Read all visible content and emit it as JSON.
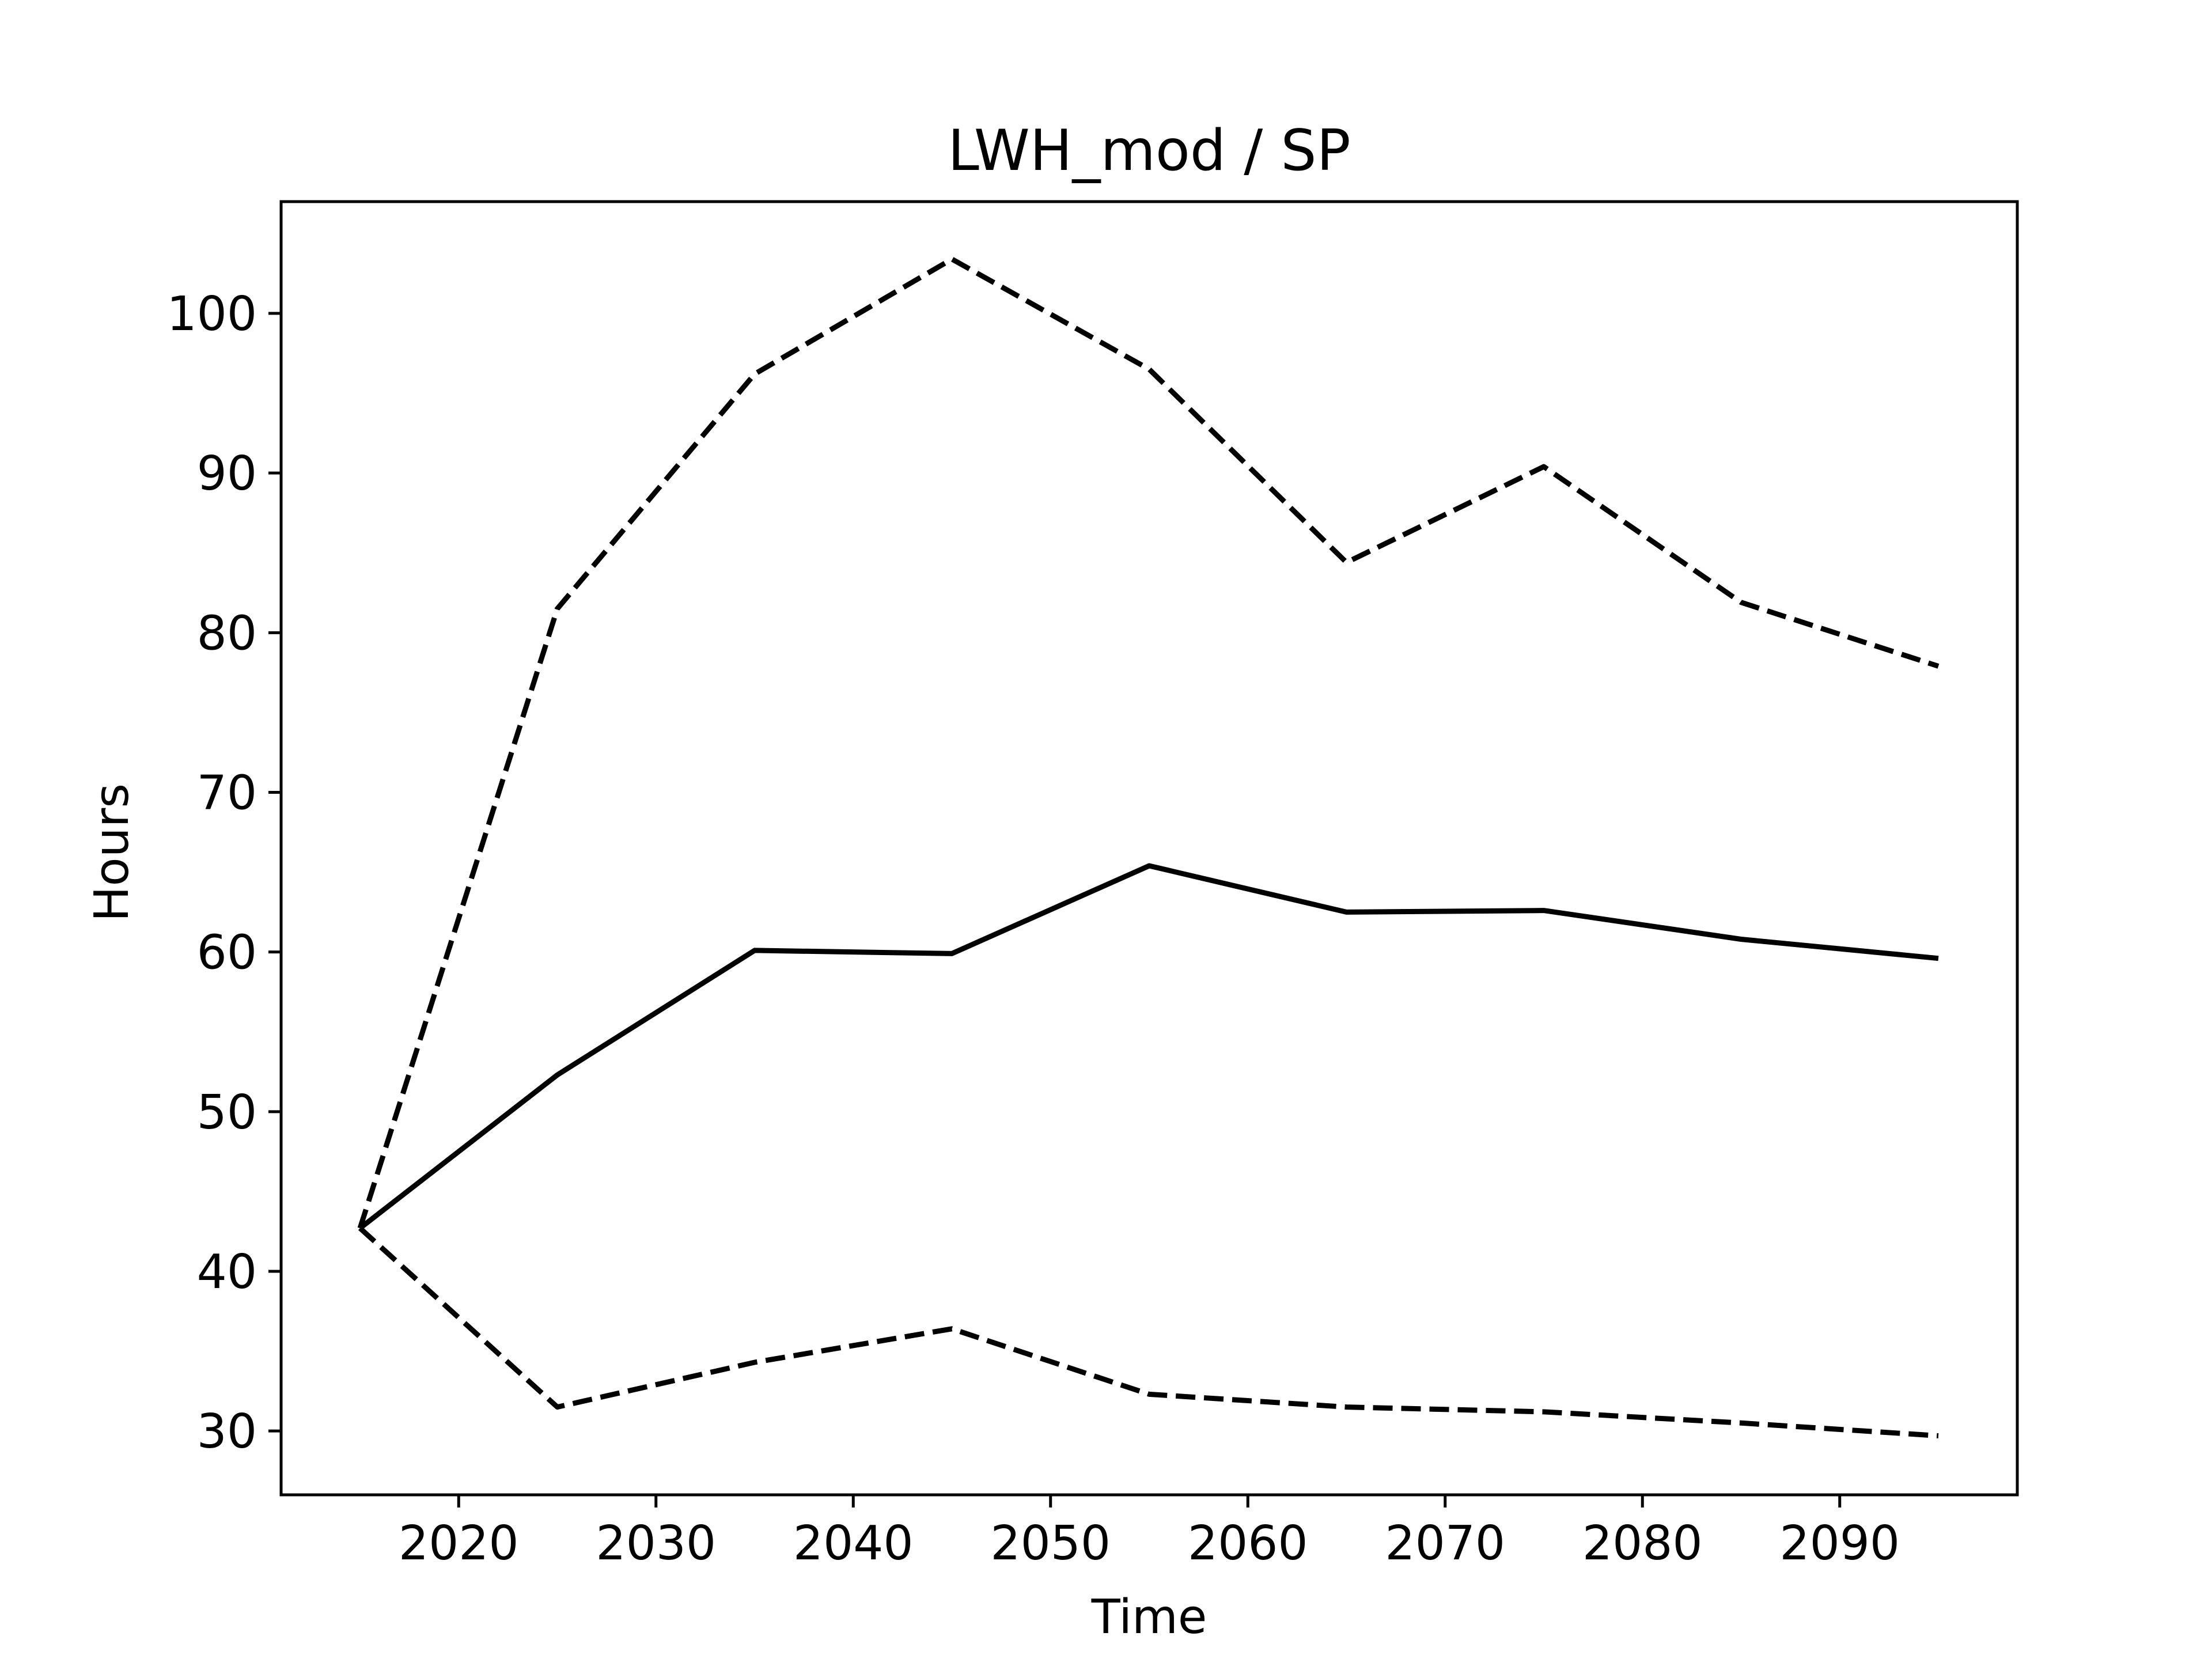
{
  "chart_data": {
    "type": "line",
    "title": "LWH_mod / SP",
    "xlabel": "Time",
    "ylabel": "Hours",
    "xlim": [
      2011,
      2099
    ],
    "ylim": [
      26,
      107
    ],
    "xticks": [
      2020,
      2030,
      2040,
      2050,
      2060,
      2070,
      2080,
      2090
    ],
    "yticks": [
      30,
      40,
      50,
      60,
      70,
      80,
      90,
      100
    ],
    "grid": false,
    "legend": "none",
    "x": [
      2015,
      2025,
      2035,
      2045,
      2055,
      2065,
      2075,
      2085,
      2095
    ],
    "series": [
      {
        "style": "solid",
        "color": "#000000",
        "values": [
          42.7,
          52.3,
          60.1,
          59.9,
          65.4,
          62.5,
          62.6,
          60.8,
          59.6
        ]
      },
      {
        "style": "dashed",
        "color": "#000000",
        "values": [
          42.7,
          81.5,
          96.2,
          103.4,
          96.5,
          84.4,
          90.4,
          81.9,
          77.9
        ]
      },
      {
        "style": "dashed",
        "color": "#000000",
        "values": [
          42.7,
          31.5,
          34.3,
          36.4,
          32.3,
          31.5,
          31.2,
          30.5,
          29.7
        ]
      }
    ]
  }
}
